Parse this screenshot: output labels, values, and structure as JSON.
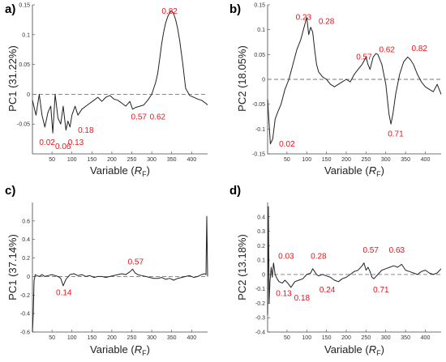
{
  "colors": {
    "line": "#222222",
    "annotation": "#e8141a",
    "zero_line": "#777777",
    "axes": "#444444"
  },
  "chart_data": [
    {
      "type": "line",
      "panel": "a)",
      "ylabel": "PC1 (31.22%)",
      "xlabel": {
        "prefix": "Variable (",
        "italic": "R",
        "sub": "F",
        "suffix": ")"
      },
      "xlim": [
        1,
        440
      ],
      "ylim": [
        -0.1,
        0.15
      ],
      "xticks": [
        50,
        100,
        150,
        200,
        250,
        300,
        350,
        400
      ],
      "yticks": [
        -0.05,
        0,
        0.05,
        0.1,
        0.15
      ],
      "ytick_labels": [
        "-0.05",
        "0",
        "0.05",
        "0.1",
        "0.15"
      ],
      "zero_line": true,
      "grid": false,
      "x": [
        1,
        10,
        18,
        25,
        32,
        40,
        47,
        52,
        58,
        65,
        72,
        78,
        85,
        90,
        95,
        100,
        108,
        115,
        125,
        135,
        145,
        155,
        165,
        175,
        185,
        195,
        205,
        215,
        225,
        235,
        245,
        252,
        260,
        270,
        280,
        290,
        300,
        305,
        310,
        315,
        320,
        325,
        330,
        335,
        340,
        345,
        350,
        355,
        360,
        365,
        370,
        378,
        385,
        395,
        405,
        415,
        425,
        435,
        440
      ],
      "y": [
        -0.01,
        -0.035,
        0.0,
        -0.035,
        -0.055,
        -0.03,
        -0.02,
        -0.065,
        0.0,
        -0.04,
        -0.05,
        -0.02,
        -0.06,
        -0.045,
        -0.055,
        -0.035,
        -0.02,
        -0.035,
        -0.025,
        -0.02,
        -0.015,
        -0.01,
        -0.005,
        -0.012,
        -0.005,
        -0.002,
        -0.008,
        -0.01,
        -0.015,
        -0.02,
        -0.012,
        -0.025,
        -0.022,
        -0.02,
        -0.018,
        -0.01,
        0.0,
        0.01,
        0.02,
        0.035,
        0.06,
        0.085,
        0.105,
        0.12,
        0.13,
        0.137,
        0.14,
        0.135,
        0.125,
        0.11,
        0.09,
        0.05,
        0.01,
        -0.002,
        -0.005,
        -0.008,
        -0.01,
        -0.015,
        -0.018
      ],
      "annotations": [
        {
          "text": "0.82",
          "x": 325,
          "y": 0.135
        },
        {
          "text": "0.02",
          "x": 18,
          "y": -0.085
        },
        {
          "text": "0.06",
          "x": 58,
          "y": -0.092
        },
        {
          "text": "0.13",
          "x": 90,
          "y": -0.085
        },
        {
          "text": "0.18",
          "x": 115,
          "y": -0.065
        },
        {
          "text": "0.57",
          "x": 248,
          "y": -0.042
        },
        {
          "text": "0.62",
          "x": 295,
          "y": -0.042
        }
      ]
    },
    {
      "type": "line",
      "panel": "b)",
      "ylabel": "PC2 (18.05%)",
      "xlabel": {
        "prefix": "Variable (",
        "italic": "R",
        "sub": "F",
        "suffix": ")"
      },
      "xlim": [
        1,
        440
      ],
      "ylim": [
        -0.15,
        0.15
      ],
      "xticks": [
        50,
        100,
        150,
        200,
        250,
        300,
        350,
        400
      ],
      "yticks": [
        -0.15,
        -0.1,
        -0.05,
        0,
        0.05,
        0.1,
        0.15
      ],
      "ytick_labels": [
        "-0.15",
        "-0.1",
        "-0.05",
        "0",
        "0.05",
        "0.1",
        "0.15"
      ],
      "zero_line": true,
      "grid": false,
      "x": [
        1,
        8,
        14,
        20,
        27,
        35,
        45,
        55,
        65,
        75,
        85,
        95,
        100,
        105,
        110,
        115,
        120,
        125,
        130,
        140,
        150,
        160,
        170,
        180,
        190,
        200,
        210,
        220,
        230,
        240,
        250,
        255,
        260,
        268,
        275,
        280,
        290,
        300,
        308,
        313,
        318,
        325,
        335,
        345,
        355,
        362,
        370,
        380,
        390,
        400,
        410,
        420,
        430,
        440
      ],
      "y": [
        -0.04,
        -0.13,
        -0.12,
        -0.08,
        -0.065,
        -0.05,
        -0.02,
        0.0,
        0.03,
        0.06,
        0.08,
        0.11,
        0.125,
        0.09,
        0.105,
        0.095,
        0.06,
        0.03,
        0.015,
        0.005,
        0.0,
        -0.01,
        -0.015,
        -0.01,
        -0.005,
        0.0,
        -0.005,
        0.01,
        0.02,
        0.03,
        0.045,
        0.03,
        0.02,
        0.045,
        0.052,
        0.05,
        0.03,
        -0.01,
        -0.07,
        -0.09,
        -0.07,
        -0.03,
        0.01,
        0.035,
        0.045,
        0.04,
        0.03,
        0.01,
        -0.005,
        -0.015,
        -0.02,
        -0.025,
        -0.01,
        -0.03
      ],
      "annotations": [
        {
          "text": "0.23",
          "x": 72,
          "y": 0.12
        },
        {
          "text": "0.28",
          "x": 130,
          "y": 0.112
        },
        {
          "text": "0.02",
          "x": 30,
          "y": -0.135
        },
        {
          "text": "0.57",
          "x": 225,
          "y": 0.04
        },
        {
          "text": "0.62",
          "x": 283,
          "y": 0.055
        },
        {
          "text": "0.82",
          "x": 365,
          "y": 0.057
        },
        {
          "text": "0.71",
          "x": 305,
          "y": -0.115
        }
      ]
    },
    {
      "type": "line",
      "panel": "c)",
      "ylabel": "PC1 (37.14%)",
      "xlabel": {
        "prefix": "Variable (",
        "italic": "R",
        "sub": "F",
        "suffix": ")"
      },
      "xlim": [
        1,
        440
      ],
      "ylim": [
        -0.6,
        0.8
      ],
      "xticks": [
        50,
        100,
        150,
        200,
        250,
        300,
        350,
        400
      ],
      "yticks": [
        -0.6,
        -0.4,
        -0.2,
        0,
        0.2,
        0.4,
        0.6
      ],
      "ytick_labels": [
        "-0.6",
        "-0.4",
        "-0.2",
        "0",
        "0.2",
        "0.4",
        "0.6"
      ],
      "zero_line": true,
      "grid": false,
      "x": [
        1,
        3,
        5,
        8,
        12,
        18,
        25,
        32,
        40,
        50,
        58,
        65,
        72,
        78,
        85,
        95,
        105,
        115,
        125,
        135,
        145,
        155,
        165,
        175,
        185,
        195,
        205,
        215,
        225,
        235,
        245,
        252,
        258,
        265,
        275,
        285,
        295,
        305,
        315,
        325,
        335,
        345,
        355,
        365,
        375,
        385,
        395,
        405,
        415,
        425,
        432,
        436,
        438,
        440
      ],
      "y": [
        -0.6,
        -0.4,
        -0.05,
        0.02,
        0.01,
        0.0,
        0.02,
        0.0,
        0.01,
        0.02,
        0.01,
        0.0,
        -0.02,
        -0.1,
        -0.03,
        0.02,
        0.03,
        0.01,
        0.02,
        0.0,
        0.01,
        -0.01,
        0.0,
        0.0,
        -0.01,
        0.0,
        0.01,
        0.02,
        0.03,
        0.02,
        0.05,
        0.08,
        0.04,
        0.02,
        0.01,
        0.0,
        -0.01,
        -0.02,
        -0.02,
        -0.01,
        -0.03,
        -0.02,
        -0.04,
        -0.02,
        -0.01,
        0.0,
        0.01,
        -0.01,
        0.0,
        0.02,
        0.03,
        0.02,
        0.65,
        0.0
      ],
      "annotations": [
        {
          "text": "0.57",
          "x": 240,
          "y": 0.13
        },
        {
          "text": "0.14",
          "x": 60,
          "y": -0.2
        }
      ]
    },
    {
      "type": "line",
      "panel": "d)",
      "ylabel": "PC2 (13.18%)",
      "xlabel": {
        "prefix": "Variable (",
        "italic": "R",
        "sub": "F",
        "suffix": ")"
      },
      "xlim": [
        1,
        440
      ],
      "ylim": [
        -0.4,
        0.5
      ],
      "xticks": [
        50,
        100,
        150,
        200,
        250,
        300,
        350,
        400
      ],
      "yticks": [
        -0.4,
        -0.3,
        -0.2,
        -0.1,
        0,
        0.1,
        0.2,
        0.3,
        0.4
      ],
      "ytick_labels": [
        "-0.4",
        "-0.3",
        "-0.2",
        "-0.1",
        "0",
        "0.1",
        "0.2",
        "0.3",
        "0.4"
      ],
      "zero_line": true,
      "grid": false,
      "x": [
        1,
        3,
        5,
        7,
        10,
        13,
        16,
        20,
        25,
        30,
        38,
        45,
        52,
        60,
        70,
        80,
        90,
        100,
        110,
        115,
        120,
        125,
        130,
        140,
        150,
        160,
        170,
        180,
        190,
        200,
        210,
        220,
        230,
        240,
        245,
        250,
        255,
        260,
        265,
        270,
        280,
        290,
        300,
        310,
        320,
        330,
        340,
        350,
        360,
        370,
        380,
        390,
        400,
        410,
        420,
        430,
        440
      ],
      "y": [
        -0.28,
        0.47,
        -0.2,
        -0.05,
        0.05,
        -0.02,
        0.08,
        0.0,
        -0.03,
        -0.05,
        -0.06,
        -0.04,
        -0.06,
        -0.09,
        -0.05,
        -0.04,
        -0.03,
        0.0,
        0.01,
        0.04,
        0.02,
        0.0,
        -0.01,
        0.0,
        -0.01,
        -0.02,
        -0.04,
        -0.05,
        -0.03,
        -0.02,
        0.0,
        0.02,
        0.03,
        0.06,
        0.08,
        0.03,
        0.05,
        0.02,
        -0.02,
        -0.03,
        0.0,
        0.03,
        0.04,
        0.05,
        0.06,
        0.05,
        0.07,
        0.03,
        0.02,
        0.01,
        0.0,
        0.02,
        0.03,
        0.01,
        0.0,
        0.01,
        0.04
      ],
      "annotations": [
        {
          "text": "0.03",
          "x": 28,
          "y": 0.11
        },
        {
          "text": "0.28",
          "x": 110,
          "y": 0.11
        },
        {
          "text": "0.57",
          "x": 242,
          "y": 0.15
        },
        {
          "text": "0.63",
          "x": 308,
          "y": 0.15
        },
        {
          "text": "0.13",
          "x": 22,
          "y": -0.15
        },
        {
          "text": "0.18",
          "x": 68,
          "y": -0.18
        },
        {
          "text": "0.24",
          "x": 132,
          "y": -0.125
        },
        {
          "text": "0.71",
          "x": 268,
          "y": -0.125
        }
      ]
    }
  ]
}
